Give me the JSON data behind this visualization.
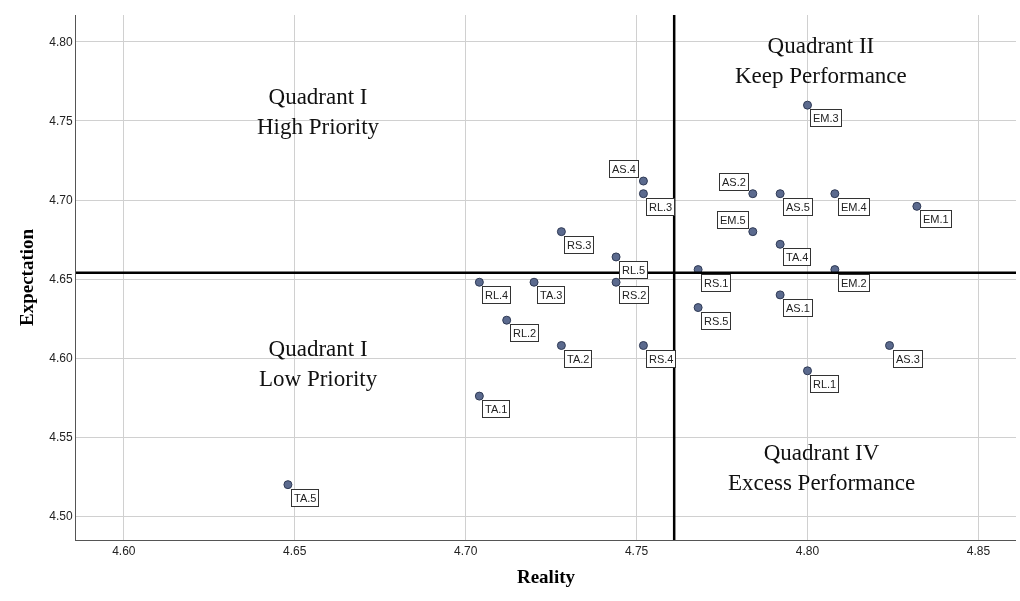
{
  "chart_data": {
    "type": "scatter",
    "xlabel": "Reality",
    "ylabel": "Expectation",
    "x": [
      4.752,
      4.752,
      4.728,
      4.744,
      4.744,
      4.704,
      4.72,
      4.712,
      4.728,
      4.752,
      4.704,
      4.8,
      4.784,
      4.792,
      4.808,
      4.832,
      4.784,
      4.792,
      4.768,
      4.808,
      4.792,
      4.768,
      4.824,
      4.8,
      4.648
    ],
    "series": [
      {
        "color": "#5b6a8e",
        "values": [
          4.712,
          4.704,
          4.68,
          4.664,
          4.648,
          4.648,
          4.648,
          4.624,
          4.608,
          4.608,
          4.576,
          4.76,
          4.704,
          4.704,
          4.704,
          4.696,
          4.68,
          4.672,
          4.656,
          4.656,
          4.64,
          4.632,
          4.608,
          4.592,
          4.52
        ]
      }
    ],
    "xlim": [
      4.586,
      4.861
    ],
    "ylim": [
      4.485,
      4.817
    ],
    "xticks": [
      {
        "value": 4.6,
        "label": "4.60"
      },
      {
        "value": 4.65,
        "label": "4.65"
      },
      {
        "value": 4.7,
        "label": "4.70"
      },
      4.75,
      {
        "value": 4.8,
        "label": "4.80"
      },
      4.85
    ],
    "yticks": [
      {
        "value": 4.5,
        "label": "4.50"
      },
      4.55,
      {
        "value": 4.6,
        "label": "4.60"
      },
      4.65,
      {
        "value": 4.7,
        "label": "4.70"
      },
      4.75,
      {
        "value": 4.8,
        "label": "4.80"
      }
    ],
    "grid": true,
    "marker": "circle",
    "ref_lines": [
      {
        "axis": "x",
        "value": 4.761,
        "color": "#000000"
      },
      {
        "axis": "y",
        "value": 4.654,
        "color": "#000000"
      }
    ],
    "annotations": [
      "Quadrant I\nHigh Priority",
      "Quadrant II\nKeep Performance",
      "Quadrant I\nLow Priority",
      "Quadrant IV\nExcess Performance",
      {
        "text": "AS.4",
        "x": 4.752,
        "y": 4.712
      },
      {
        "text": "RL.3",
        "x": 4.752,
        "y": 4.704
      },
      {
        "text": "RS.3",
        "x": 4.728,
        "y": 4.68
      },
      {
        "text": "RL.5",
        "x": 4.744,
        "y": 4.664
      },
      {
        "text": "RS.2",
        "x": 4.744,
        "y": 4.648
      },
      {
        "text": "RL.4",
        "x": 4.704,
        "y": 4.648
      },
      {
        "text": "TA.3",
        "x": 4.72,
        "y": 4.648
      },
      {
        "text": "RL.2",
        "x": 4.712,
        "y": 4.624
      },
      {
        "text": "TA.2",
        "x": 4.728,
        "y": 4.608
      },
      {
        "text": "RS.4",
        "x": 4.752,
        "y": 4.608
      },
      {
        "text": "TA.1",
        "x": 4.704,
        "y": 4.576
      },
      {
        "text": "EM.3",
        "x": 4.8,
        "y": 4.76
      },
      {
        "text": "AS.2",
        "x": 4.784,
        "y": 4.704
      },
      {
        "text": "AS.5",
        "x": 4.792,
        "y": 4.704
      },
      {
        "text": "EM.4",
        "x": 4.808,
        "y": 4.704
      },
      {
        "text": "EM.1",
        "x": 4.832,
        "y": 4.696
      },
      {
        "text": "EM.5",
        "x": 4.784,
        "y": 4.68
      },
      {
        "text": "TA.4",
        "x": 4.792,
        "y": 4.672
      },
      {
        "text": "RS.1",
        "x": 4.768,
        "y": 4.656
      },
      {
        "text": "EM.2",
        "x": 4.808,
        "y": 4.656
      },
      {
        "text": "AS.1",
        "x": 4.792,
        "y": 4.64
      },
      {
        "text": "RS.5",
        "x": 4.768,
        "y": 4.632
      },
      {
        "text": "AS.3",
        "x": 4.824,
        "y": 4.608
      },
      {
        "text": "RL.1",
        "x": 4.8,
        "y": 4.592
      },
      {
        "text": "TA.5",
        "x": 4.648,
        "y": 4.52
      }
    ]
  }
}
